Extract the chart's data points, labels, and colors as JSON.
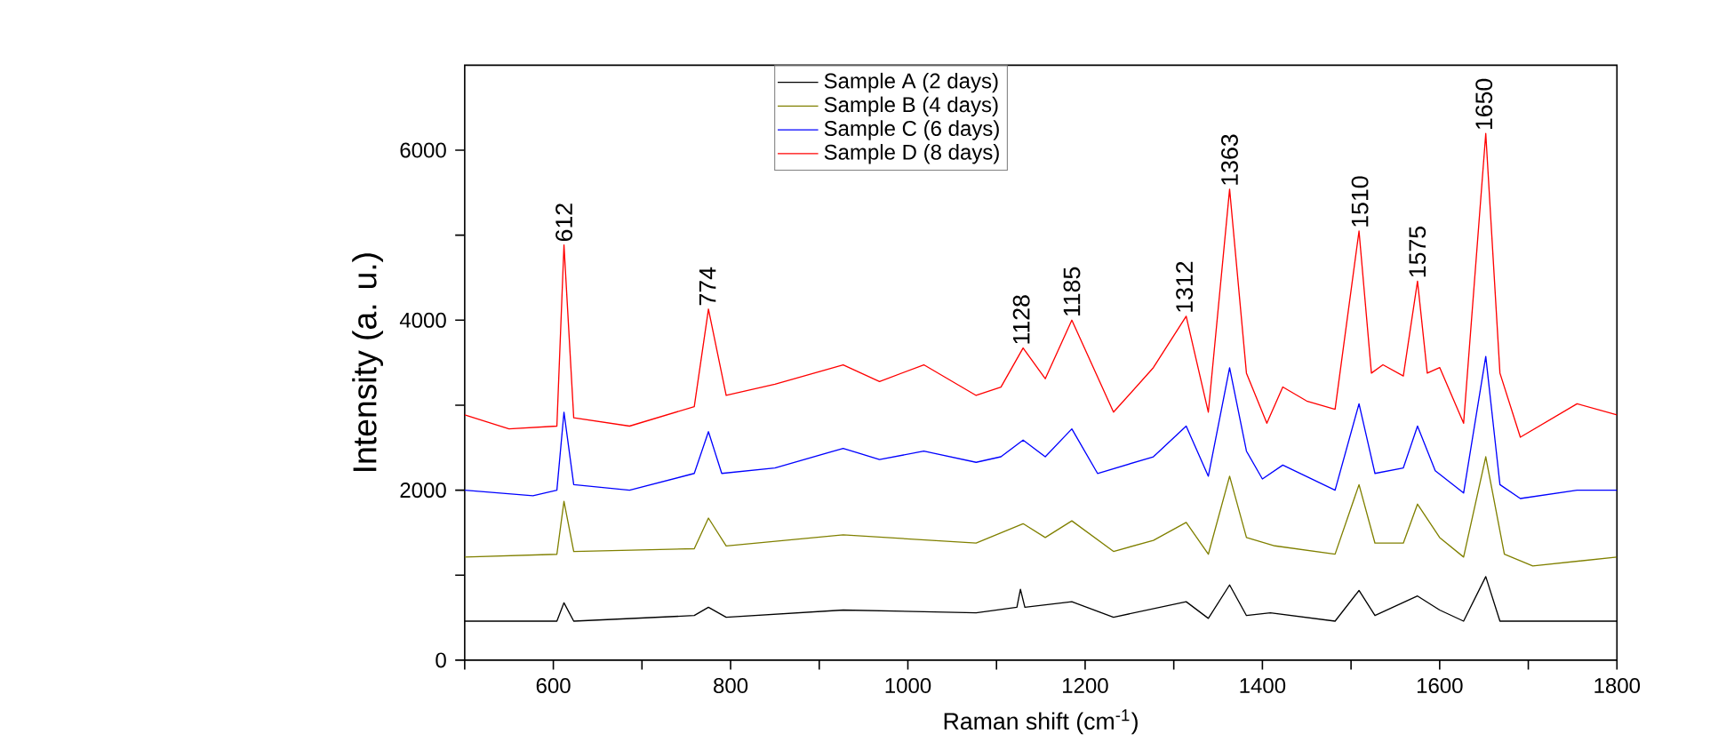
{
  "chart_data": {
    "type": "line",
    "xlabel": "Raman shift (cm$^{-1}$)",
    "ylabel": "Intensity (a. u.)",
    "xlim": [
      500,
      1800
    ],
    "ylim": [
      0,
      7000
    ],
    "xticks": [
      {
        "value": 500,
        "label": null
      },
      600,
      {
        "value": 700,
        "label": null
      },
      800,
      {
        "value": 900,
        "label": null
      },
      1000,
      {
        "value": 1100,
        "label": null
      },
      1200,
      {
        "value": 1300,
        "label": null
      },
      1400,
      {
        "value": 1500,
        "label": null
      },
      1600,
      {
        "value": 1700,
        "label": null
      },
      1800
    ],
    "yticks": [
      0,
      {
        "value": 1000,
        "label": null
      },
      2000,
      {
        "value": 3000,
        "label": null
      },
      4000,
      {
        "value": 5000,
        "label": null
      },
      6000
    ],
    "legend": "top",
    "grid": false,
    "marker": "none",
    "line_style": "solid",
    "series": [
      {
        "name": "Sample A (2 days)",
        "color": "#000000",
        "x": [
          500,
          604,
          612,
          623,
          759,
          775,
          795,
          927,
          1077,
          1123,
          1127,
          1132,
          1185,
          1232,
          1314,
          1339,
          1363,
          1382,
          1409,
          1482,
          1509,
          1527,
          1575,
          1600,
          1627,
          1652,
          1668,
          1800
        ],
        "values": [
          459,
          459,
          675,
          459,
          525,
          623,
          505,
          590,
          557,
          623,
          833,
          623,
          688,
          505,
          688,
          492,
          885,
          525,
          558,
          459,
          820,
          525,
          755,
          590,
          459,
          983,
          459,
          459
        ]
      },
      {
        "name": "Sample B (4 days)",
        "color": "#808000",
        "x": [
          500,
          604,
          612,
          623,
          759,
          775,
          795,
          927,
          1077,
          1130,
          1155,
          1185,
          1232,
          1277,
          1314,
          1339,
          1363,
          1382,
          1414,
          1482,
          1509,
          1527,
          1559,
          1575,
          1600,
          1627,
          1652,
          1673,
          1705,
          1800
        ],
        "values": [
          1213,
          1246,
          1869,
          1279,
          1311,
          1672,
          1344,
          1475,
          1377,
          1606,
          1443,
          1639,
          1279,
          1410,
          1620,
          1246,
          2164,
          1443,
          1345,
          1247,
          2065,
          1377,
          1377,
          1836,
          1443,
          1213,
          2393,
          1247,
          1109,
          1213
        ]
      },
      {
        "name": "Sample C (6 days)",
        "color": "#0000ff",
        "x": [
          500,
          577,
          604,
          612,
          623,
          686,
          759,
          775,
          790,
          850,
          927,
          968,
          1018,
          1077,
          1105,
          1130,
          1155,
          1185,
          1214,
          1277,
          1314,
          1339,
          1363,
          1382,
          1400,
          1423,
          1482,
          1509,
          1527,
          1559,
          1575,
          1595,
          1627,
          1652,
          1668,
          1691,
          1755,
          1800
        ],
        "values": [
          2000,
          1934,
          2000,
          2918,
          2065,
          2000,
          2197,
          2688,
          2197,
          2262,
          2492,
          2361,
          2459,
          2328,
          2393,
          2590,
          2393,
          2721,
          2197,
          2393,
          2754,
          2164,
          3440,
          2459,
          2132,
          2295,
          2000,
          3017,
          2197,
          2262,
          2754,
          2229,
          1967,
          3574,
          2065,
          1902,
          2000,
          2000
        ]
      },
      {
        "name": "Sample D (8 days)",
        "color": "#ff0000",
        "x": [
          500,
          550,
          604,
          612,
          623,
          686,
          759,
          775,
          795,
          850,
          927,
          968,
          1018,
          1077,
          1105,
          1130,
          1155,
          1185,
          1232,
          1277,
          1314,
          1339,
          1363,
          1382,
          1405,
          1423,
          1450,
          1482,
          1509,
          1523,
          1536,
          1559,
          1575,
          1586,
          1600,
          1627,
          1652,
          1668,
          1691,
          1755,
          1800
        ],
        "values": [
          2885,
          2721,
          2754,
          4885,
          2852,
          2754,
          2983,
          4131,
          3115,
          3246,
          3475,
          3279,
          3475,
          3115,
          3213,
          3672,
          3311,
          4000,
          2918,
          3442,
          4046,
          2918,
          5541,
          3377,
          2787,
          3214,
          3049,
          2951,
          5049,
          3377,
          3475,
          3344,
          4459,
          3377,
          3443,
          2787,
          6196,
          3377,
          2623,
          3017,
          2886
        ]
      }
    ],
    "annotations": [
      {
        "text": "612",
        "x": 612,
        "y": 4885
      },
      {
        "text": "774",
        "x": 774,
        "y": 4131
      },
      {
        "text": "1128",
        "x": 1128,
        "y": 3672
      },
      {
        "text": "1185",
        "x": 1185,
        "y": 4000
      },
      {
        "text": "1312",
        "x": 1312,
        "y": 4046
      },
      {
        "text": "1363",
        "x": 1363,
        "y": 5541
      },
      {
        "text": "1510",
        "x": 1510,
        "y": 5049
      },
      {
        "text": "1575",
        "x": 1575,
        "y": 4459
      },
      {
        "text": "1650",
        "x": 1650,
        "y": 6196
      }
    ]
  }
}
